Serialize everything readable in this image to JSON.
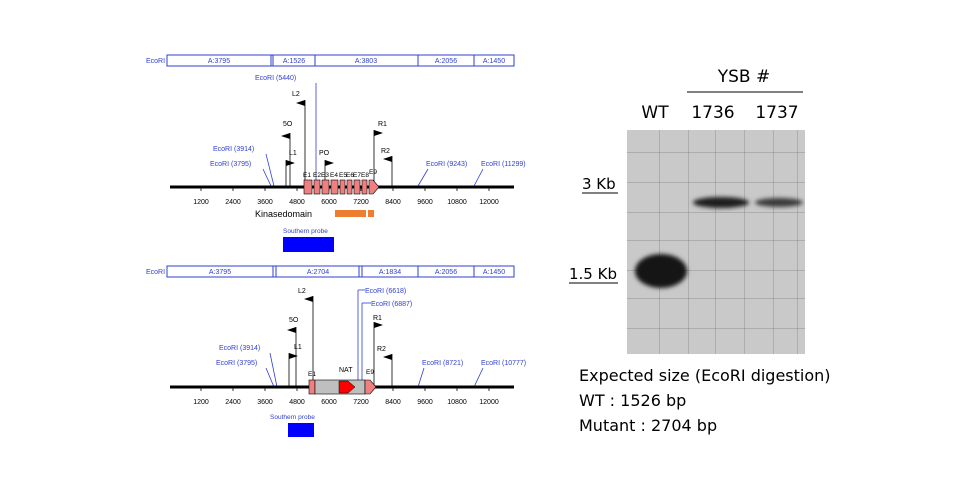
{
  "colors": {
    "label_blue": "#2f3fd0",
    "exon_red": "#f08080",
    "kinase_orange": "#ed7d31",
    "probe_blue": "#0000ff",
    "nat_grey": "#bfbfbf",
    "nat_arrow_red": "#ff0000",
    "gel_bg": "#c9c9c9"
  },
  "wt_map": {
    "restriction_tag": "EcoRI",
    "fragments": [
      "A:3795",
      "A:1526",
      "A:3803",
      "A:2056",
      "A:1450"
    ],
    "sites": [
      "EcoRI (5440)",
      "EcoRI (3914)",
      "EcoRI (3795)",
      "EcoRI (9243)",
      "EcoRI (11299)"
    ],
    "primers": [
      "L2",
      "5O",
      "L1",
      "PO",
      "R1",
      "R2"
    ],
    "exons": [
      "E1",
      "E2",
      "E3",
      "E4",
      "E5",
      "E6",
      "E7",
      "E8",
      "E9"
    ],
    "axis_ticks": [
      "1200",
      "2400",
      "3600",
      "4800",
      "6000",
      "7200",
      "8400",
      "9600",
      "10800",
      "12000"
    ],
    "kinase_label": "Kinasedomain",
    "probe_label": "Southern probe"
  },
  "mut_map": {
    "restriction_tag": "EcoRI",
    "fragments": [
      "A:3795",
      "A:2704",
      "A:1834",
      "A:2056",
      "A:1450"
    ],
    "sites": [
      "EcoRI (6618)",
      "EcoRI (6887)",
      "EcoRI (3914)",
      "EcoRI (3795)",
      "EcoRI (8721)",
      "EcoRI (10777)"
    ],
    "primers": [
      "L2",
      "5O",
      "L1",
      "R1",
      "R2"
    ],
    "exons": [
      "E1",
      "E9"
    ],
    "cassette_label": "NAT",
    "axis_ticks": [
      "1200",
      "2400",
      "3600",
      "4800",
      "6000",
      "7200",
      "8400",
      "9600",
      "10800",
      "12000"
    ],
    "probe_label": "Southern probe"
  },
  "blot": {
    "group_label": "YSB #",
    "lanes": [
      "WT",
      "1736",
      "1737"
    ],
    "markers": [
      "3 Kb",
      "1.5 Kb"
    ],
    "caption": {
      "line1": "Expected size (EcoRI digestion)",
      "line2": "WT : 1526 bp",
      "line3": "Mutant : 2704 bp"
    }
  }
}
